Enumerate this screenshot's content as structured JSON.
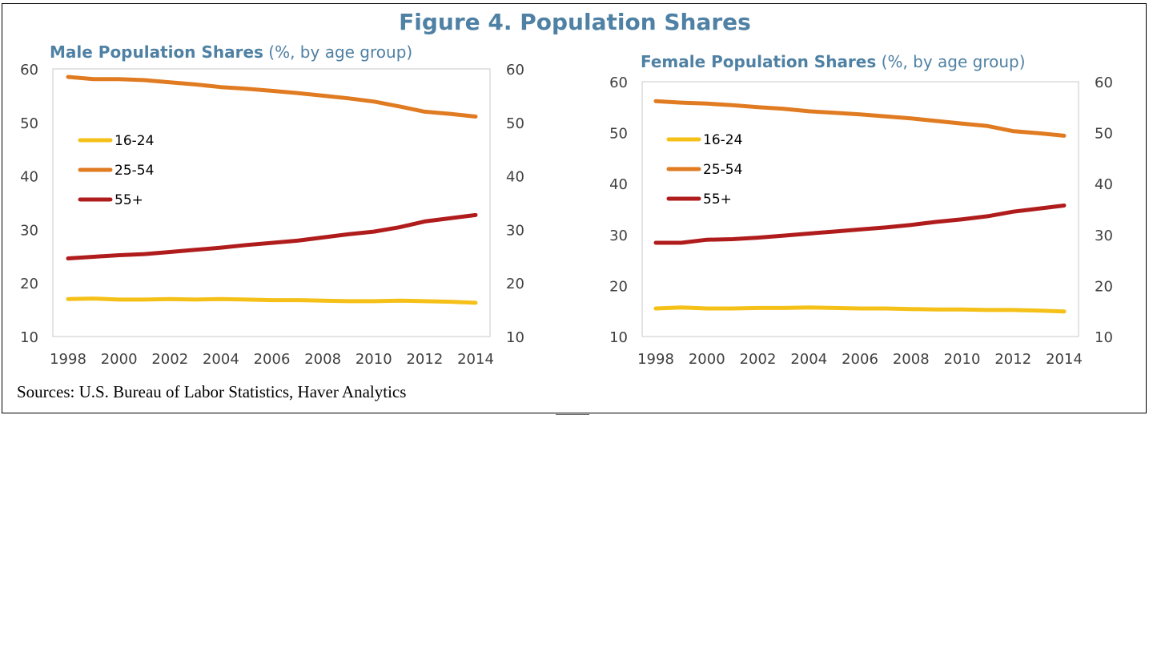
{
  "figure": {
    "title": "Figure 4. Population Shares",
    "source": "Sources: U.S. Bureau of Labor Statistics, Haver Analytics"
  },
  "colors": {
    "title": "#4f81a4",
    "series_16_24": "#f5c018",
    "series_25_54": "#e07b22",
    "series_55_plus": "#b01c1c"
  },
  "chart_data": [
    {
      "type": "line",
      "title": "Male Population Shares",
      "subtitle": "(%, by age group)",
      "x": [
        1998,
        1999,
        2000,
        2001,
        2002,
        2003,
        2004,
        2005,
        2006,
        2007,
        2008,
        2009,
        2010,
        2011,
        2012,
        2013,
        2014
      ],
      "xticks": [
        "1998",
        "2000",
        "2002",
        "2004",
        "2006",
        "2008",
        "2010",
        "2012",
        "2014"
      ],
      "ylim": [
        10,
        60
      ],
      "yticks": [
        "10",
        "20",
        "30",
        "40",
        "50",
        "60"
      ],
      "y2ticks": [
        "10",
        "20",
        "30",
        "40",
        "50",
        "60"
      ],
      "grid": false,
      "legend_position": "left",
      "series": [
        {
          "name": "16-24",
          "values": [
            17.0,
            17.1,
            16.9,
            16.9,
            17.0,
            16.9,
            17.0,
            16.9,
            16.8,
            16.8,
            16.7,
            16.6,
            16.6,
            16.7,
            16.6,
            16.5,
            16.3
          ]
        },
        {
          "name": "25-54",
          "values": [
            58.5,
            58.1,
            58.1,
            57.9,
            57.5,
            57.1,
            56.6,
            56.3,
            55.9,
            55.5,
            55.0,
            54.5,
            53.9,
            53.0,
            52.0,
            51.6,
            51.1
          ]
        },
        {
          "name": "55+",
          "values": [
            24.6,
            24.9,
            25.2,
            25.4,
            25.8,
            26.2,
            26.6,
            27.1,
            27.5,
            27.9,
            28.5,
            29.1,
            29.6,
            30.4,
            31.5,
            32.1,
            32.7
          ]
        }
      ]
    },
    {
      "type": "line",
      "title": "Female Population Shares",
      "subtitle": "(%, by age group)",
      "x": [
        1998,
        1999,
        2000,
        2001,
        2002,
        2003,
        2004,
        2005,
        2006,
        2007,
        2008,
        2009,
        2010,
        2011,
        2012,
        2013,
        2014
      ],
      "xticks": [
        "1998",
        "2000",
        "2002",
        "2004",
        "2006",
        "2008",
        "2010",
        "2012",
        "2014"
      ],
      "ylim": [
        10,
        60
      ],
      "yticks": [
        "10",
        "20",
        "30",
        "40",
        "50",
        "60"
      ],
      "y2ticks": [
        "10",
        "20",
        "30",
        "40",
        "50",
        "60"
      ],
      "grid": false,
      "legend_position": "left",
      "series": [
        {
          "name": "16-24",
          "values": [
            15.5,
            15.7,
            15.5,
            15.5,
            15.6,
            15.6,
            15.7,
            15.6,
            15.5,
            15.5,
            15.4,
            15.3,
            15.3,
            15.2,
            15.2,
            15.1,
            14.9
          ]
        },
        {
          "name": "25-54",
          "values": [
            56.2,
            55.9,
            55.7,
            55.4,
            55.0,
            54.7,
            54.2,
            53.9,
            53.6,
            53.2,
            52.8,
            52.3,
            51.8,
            51.3,
            50.3,
            49.9,
            49.4
          ]
        },
        {
          "name": "55+",
          "values": [
            28.4,
            28.4,
            29.0,
            29.1,
            29.4,
            29.8,
            30.2,
            30.6,
            31.0,
            31.4,
            31.9,
            32.5,
            33.0,
            33.6,
            34.5,
            35.1,
            35.7
          ]
        }
      ]
    }
  ]
}
